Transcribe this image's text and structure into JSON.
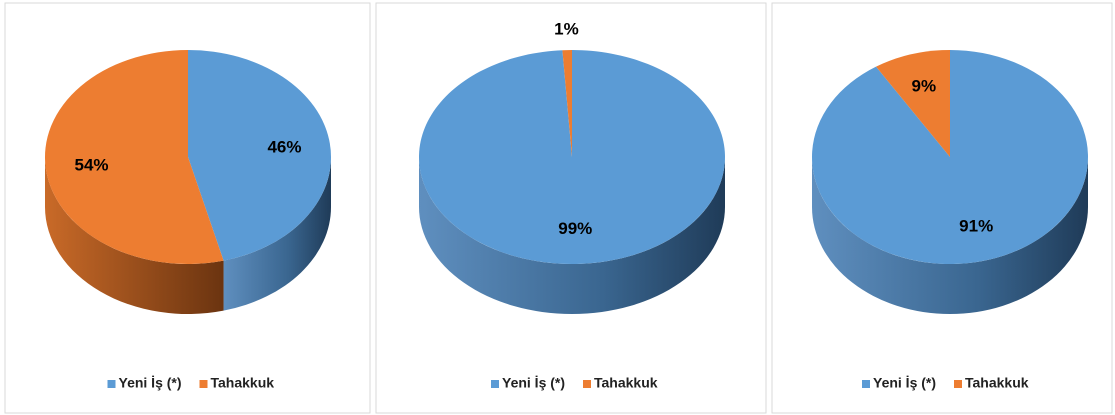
{
  "chart_data": [
    {
      "type": "pie",
      "categories": [
        "Yeni İş (*)",
        "Tahakkuk"
      ],
      "values": [
        46,
        54
      ],
      "value_labels": [
        "46%",
        "54%"
      ],
      "colors": [
        "#5b9bd5",
        "#ed7d31"
      ]
    },
    {
      "type": "pie",
      "categories": [
        "Yeni İş (*)",
        "Tahakkuk"
      ],
      "values": [
        99,
        1
      ],
      "value_labels": [
        "99%",
        "1%"
      ],
      "colors": [
        "#5b9bd5",
        "#ed7d31"
      ]
    },
    {
      "type": "pie",
      "categories": [
        "Yeni İş (*)",
        "Tahakkuk"
      ],
      "values": [
        91,
        9
      ],
      "value_labels": [
        "91%",
        "9%"
      ],
      "colors": [
        "#5b9bd5",
        "#ed7d31"
      ]
    }
  ]
}
